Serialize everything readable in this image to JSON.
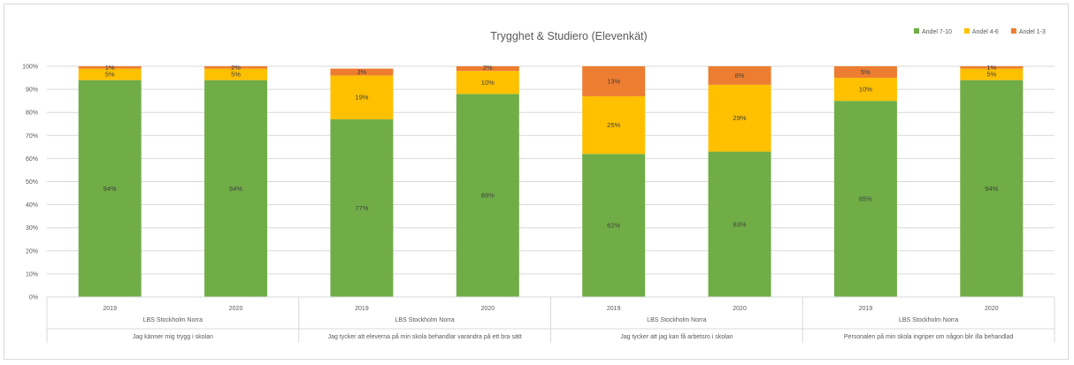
{
  "chart_data": {
    "type": "bar",
    "stacked": true,
    "title": "Trygghet & Studiero (Elevenkät)",
    "y_ticks": [
      "0%",
      "10%",
      "20%",
      "30%",
      "40%",
      "50%",
      "60%",
      "70%",
      "80%",
      "90%",
      "100%"
    ],
    "ylim": [
      0,
      100
    ],
    "grid": true,
    "legend_position": "top-right",
    "series": [
      {
        "name": "Andel 7-10",
        "color": "#70ad47",
        "values": [
          94,
          94,
          77,
          88,
          62,
          63,
          85,
          94
        ],
        "labels": [
          "94%",
          "94%",
          "77%",
          "88%",
          "62%",
          "63%",
          "85%",
          "94%"
        ]
      },
      {
        "name": "Andel 4-6",
        "color": "#ffc000",
        "values": [
          5,
          5,
          19,
          10,
          25,
          29,
          10,
          5
        ],
        "labels": [
          "5%",
          "5%",
          "19%",
          "10%",
          "25%",
          "29%",
          "10%",
          "5%"
        ]
      },
      {
        "name": "Andel 1-3",
        "color": "#ed7d31",
        "values": [
          1,
          2,
          3,
          2,
          13,
          8,
          5,
          1
        ],
        "labels": [
          "1%",
          "2%",
          "3%",
          "2%",
          "13%",
          "8%",
          "5%",
          "1%"
        ]
      }
    ],
    "categories": [
      "2019",
      "2020",
      "2019",
      "2020",
      "2019",
      "2020",
      "2019",
      "2020"
    ],
    "groups": [
      {
        "unit": "LBS Stockholm Norra",
        "question": "Jag känner mig trygg i skolan"
      },
      {
        "unit": "LBS Stockholm Norra",
        "question": "Jag tycker att eleverna på min skola behandlar varandra på ett bra sätt"
      },
      {
        "unit": "LBS Stockholm Norra",
        "question": "Jag tycker att jag kan få arbetsro i skolan"
      },
      {
        "unit": "LBS Stockholm Norra",
        "question": "Personalen på min skola ingriper om någon blir illa behandlad"
      }
    ]
  }
}
